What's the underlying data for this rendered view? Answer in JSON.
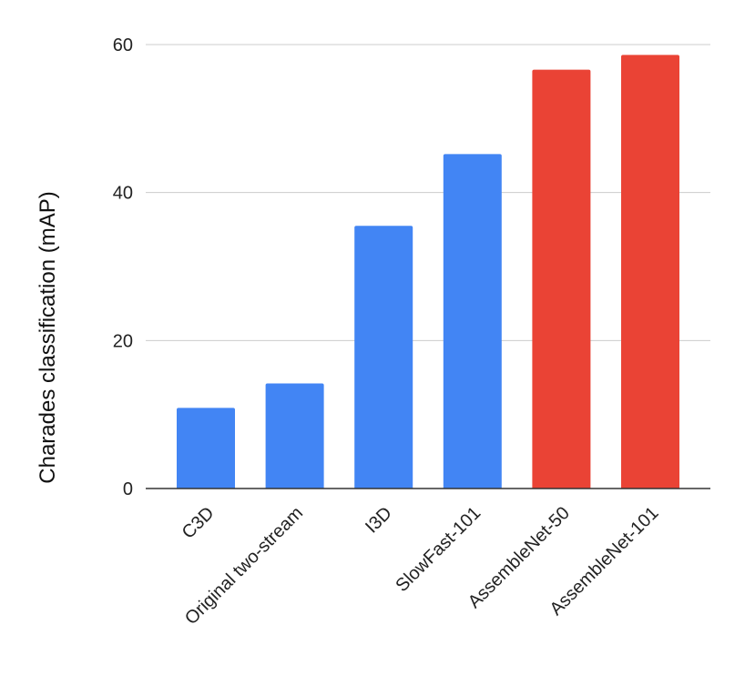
{
  "chart_data": {
    "type": "bar",
    "title": "",
    "xlabel": "",
    "ylabel": "Charades classification (mAP)",
    "ylim": [
      0,
      60
    ],
    "yticks": [
      0,
      20,
      40,
      60
    ],
    "grid": true,
    "categories": [
      "C3D",
      "Original two-stream",
      "I3D",
      "SlowFast-101",
      "AssembleNet-50",
      "AssembleNet-101"
    ],
    "values": [
      10.9,
      14.2,
      35.5,
      45.2,
      56.6,
      58.6
    ],
    "colors": [
      "#4285f4",
      "#4285f4",
      "#4285f4",
      "#4285f4",
      "#ea4335",
      "#ea4335"
    ]
  }
}
